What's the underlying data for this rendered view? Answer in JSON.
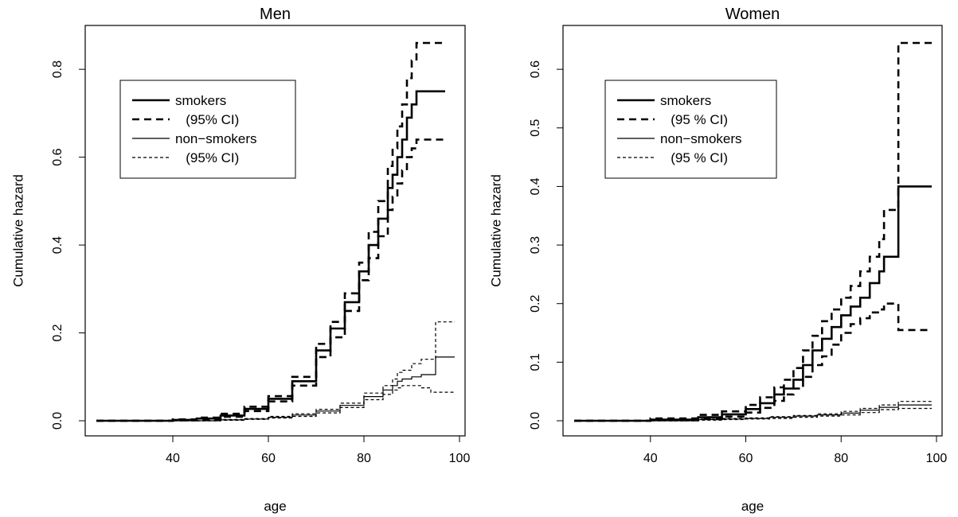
{
  "chart_data": [
    {
      "type": "line",
      "title": "Men",
      "xlabel": "age",
      "ylabel": "Cumulative hazard",
      "xlim": [
        24,
        99
      ],
      "ylim": [
        0,
        0.86
      ],
      "x_ticks": [
        40,
        60,
        80,
        100
      ],
      "y_ticks": [
        0.0,
        0.2,
        0.4,
        0.6,
        0.8
      ],
      "x_tick_labels": [
        "40",
        "60",
        "80",
        "100"
      ],
      "y_tick_labels": [
        "0.0",
        "0.2",
        "0.4",
        "0.6",
        "0.8"
      ],
      "grid": false,
      "legend_position": "top-left",
      "series": [
        {
          "name": "smokers",
          "style": "thick-solid",
          "x": [
            24,
            40,
            45,
            50,
            55,
            60,
            65,
            70,
            73,
            76,
            79,
            81,
            83,
            85,
            86,
            87,
            88,
            89,
            90,
            91,
            97
          ],
          "y": [
            0,
            0.002,
            0.005,
            0.012,
            0.027,
            0.05,
            0.09,
            0.16,
            0.21,
            0.27,
            0.34,
            0.4,
            0.46,
            0.53,
            0.56,
            0.6,
            0.64,
            0.69,
            0.72,
            0.75,
            0.75
          ]
        },
        {
          "name": "(95% CI)",
          "style": "thick-dashed",
          "x": [
            24,
            40,
            45,
            50,
            55,
            60,
            65,
            70,
            73,
            76,
            79,
            81,
            83,
            85,
            86,
            87,
            88,
            89,
            90,
            91,
            97
          ],
          "y": [
            0,
            0.003,
            0.007,
            0.016,
            0.032,
            0.056,
            0.1,
            0.175,
            0.225,
            0.29,
            0.36,
            0.43,
            0.5,
            0.58,
            0.62,
            0.67,
            0.72,
            0.78,
            0.82,
            0.86,
            0.86
          ]
        },
        {
          "name": "",
          "style": "thick-dashed",
          "x": [
            24,
            40,
            45,
            50,
            55,
            60,
            65,
            70,
            73,
            76,
            79,
            81,
            83,
            85,
            86,
            87,
            88,
            89,
            90,
            91,
            97
          ],
          "y": [
            0,
            0.001,
            0.003,
            0.009,
            0.022,
            0.044,
            0.08,
            0.145,
            0.19,
            0.25,
            0.32,
            0.37,
            0.42,
            0.48,
            0.51,
            0.54,
            0.57,
            0.6,
            0.62,
            0.64,
            0.64
          ]
        },
        {
          "name": "non-smokers",
          "style": "thin-solid",
          "x": [
            24,
            50,
            55,
            60,
            65,
            70,
            75,
            80,
            84,
            86,
            87,
            88,
            90,
            92,
            94,
            95,
            99
          ],
          "y": [
            0,
            0.002,
            0.004,
            0.008,
            0.013,
            0.022,
            0.035,
            0.055,
            0.07,
            0.08,
            0.09,
            0.095,
            0.1,
            0.105,
            0.105,
            0.145,
            0.145
          ]
        },
        {
          "name": "(95% CI)",
          "style": "thin-dashed",
          "x": [
            24,
            50,
            55,
            60,
            65,
            70,
            75,
            80,
            84,
            86,
            87,
            88,
            90,
            92,
            94,
            95,
            99
          ],
          "y": [
            0,
            0.003,
            0.005,
            0.01,
            0.016,
            0.026,
            0.04,
            0.063,
            0.08,
            0.095,
            0.11,
            0.115,
            0.13,
            0.14,
            0.14,
            0.225,
            0.225
          ]
        },
        {
          "name": "",
          "style": "thin-dashed",
          "x": [
            24,
            50,
            55,
            60,
            65,
            70,
            75,
            80,
            84,
            86,
            87,
            88,
            90,
            92,
            94,
            95,
            99
          ],
          "y": [
            0,
            0.001,
            0.003,
            0.006,
            0.01,
            0.018,
            0.03,
            0.048,
            0.06,
            0.07,
            0.075,
            0.08,
            0.08,
            0.075,
            0.065,
            0.065,
            0.065
          ]
        }
      ],
      "legend": [
        {
          "label": "smokers",
          "style": "thick-solid"
        },
        {
          "label": "(95% CI)",
          "style": "thick-dashed"
        },
        {
          "label": "non−smokers",
          "style": "thin-solid"
        },
        {
          "label": "(95% CI)",
          "style": "thin-dashed"
        }
      ]
    },
    {
      "type": "line",
      "title": "Women",
      "xlabel": "age",
      "ylabel": "Cumulative hazard",
      "xlim": [
        24,
        99
      ],
      "ylim": [
        0,
        0.645
      ],
      "x_ticks": [
        40,
        60,
        80,
        100
      ],
      "y_ticks": [
        0.0,
        0.1,
        0.2,
        0.3,
        0.4,
        0.5,
        0.6
      ],
      "x_tick_labels": [
        "40",
        "60",
        "80",
        "100"
      ],
      "y_tick_labels": [
        "0.0",
        "0.1",
        "0.2",
        "0.3",
        "0.4",
        "0.5",
        "0.6"
      ],
      "grid": false,
      "legend_position": "top-left",
      "series": [
        {
          "name": "smokers",
          "style": "thick-solid",
          "x": [
            24,
            40,
            50,
            55,
            60,
            63,
            66,
            68,
            70,
            72,
            74,
            76,
            78,
            80,
            82,
            84,
            86,
            88,
            89,
            92,
            99
          ],
          "y": [
            0,
            0.002,
            0.006,
            0.011,
            0.02,
            0.03,
            0.045,
            0.055,
            0.07,
            0.095,
            0.12,
            0.14,
            0.16,
            0.18,
            0.195,
            0.21,
            0.235,
            0.255,
            0.28,
            0.4,
            0.4
          ]
        },
        {
          "name": "(95 % CI)",
          "style": "thick-dashed",
          "x": [
            24,
            40,
            50,
            55,
            60,
            63,
            66,
            68,
            70,
            72,
            74,
            76,
            78,
            80,
            82,
            84,
            86,
            88,
            89,
            92,
            99
          ],
          "y": [
            0,
            0.004,
            0.01,
            0.016,
            0.027,
            0.04,
            0.057,
            0.07,
            0.09,
            0.12,
            0.145,
            0.17,
            0.19,
            0.21,
            0.23,
            0.255,
            0.28,
            0.31,
            0.36,
            0.645,
            0.645
          ]
        },
        {
          "name": "",
          "style": "thick-dashed",
          "x": [
            24,
            40,
            50,
            55,
            60,
            63,
            66,
            68,
            70,
            72,
            74,
            76,
            78,
            80,
            82,
            84,
            86,
            88,
            89,
            92,
            99
          ],
          "y": [
            0,
            0.001,
            0.003,
            0.007,
            0.014,
            0.022,
            0.034,
            0.045,
            0.055,
            0.075,
            0.095,
            0.11,
            0.13,
            0.15,
            0.165,
            0.175,
            0.185,
            0.19,
            0.2,
            0.155,
            0.155
          ]
        },
        {
          "name": "non-smokers",
          "style": "thin-solid",
          "x": [
            24,
            50,
            55,
            60,
            65,
            70,
            75,
            80,
            84,
            88,
            92,
            99
          ],
          "y": [
            0,
            0.002,
            0.003,
            0.004,
            0.006,
            0.008,
            0.01,
            0.013,
            0.018,
            0.023,
            0.027,
            0.027
          ]
        },
        {
          "name": "(95 % CI)",
          "style": "thin-dashed",
          "x": [
            24,
            50,
            55,
            60,
            65,
            70,
            75,
            80,
            84,
            88,
            92,
            99
          ],
          "y": [
            0,
            0.003,
            0.004,
            0.005,
            0.007,
            0.009,
            0.012,
            0.016,
            0.021,
            0.027,
            0.033,
            0.033
          ]
        },
        {
          "name": "",
          "style": "thin-dashed",
          "x": [
            24,
            50,
            55,
            60,
            65,
            70,
            75,
            80,
            84,
            88,
            92,
            99
          ],
          "y": [
            0,
            0.001,
            0.002,
            0.003,
            0.004,
            0.006,
            0.008,
            0.01,
            0.014,
            0.019,
            0.021,
            0.021
          ]
        }
      ],
      "legend": [
        {
          "label": "smokers",
          "style": "thick-solid"
        },
        {
          "label": "(95 % CI)",
          "style": "thick-dashed"
        },
        {
          "label": "non−smokers",
          "style": "thin-solid"
        },
        {
          "label": "(95 % CI)",
          "style": "thin-dashed"
        }
      ]
    }
  ]
}
